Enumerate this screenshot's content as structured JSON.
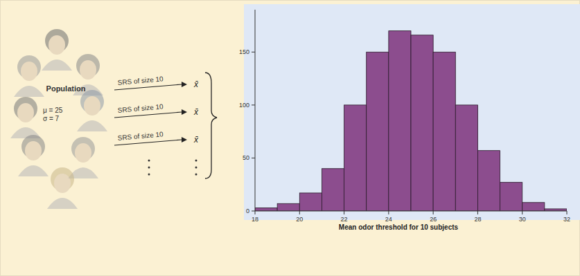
{
  "chart_data": {
    "type": "histogram",
    "x_label": "Mean odor threshold for 10 subjects",
    "bins": [
      18,
      19,
      20,
      21,
      22,
      23,
      24,
      25,
      26,
      27,
      28,
      29,
      30,
      31,
      32
    ],
    "values": [
      3,
      7,
      17,
      40,
      100,
      150,
      170,
      166,
      150,
      100,
      57,
      27,
      8,
      2
    ],
    "color": "#8c4d8e",
    "xlim": [
      18,
      32
    ],
    "xticks": [
      18,
      20,
      22,
      24,
      26,
      28,
      30,
      32
    ],
    "ylim": [
      0,
      190
    ],
    "yticks": [
      0,
      50,
      100,
      150
    ],
    "grid": false
  },
  "diagram": {
    "label": "Population",
    "parameters": [
      "μ = 25",
      "σ = 7"
    ],
    "samples": [
      {
        "label": "SRS of size 10",
        "result": "x̄"
      },
      {
        "label": "SRS of size 10",
        "result": "x̄"
      },
      {
        "label": "SRS of size 10",
        "result": "x̄"
      }
    ]
  }
}
